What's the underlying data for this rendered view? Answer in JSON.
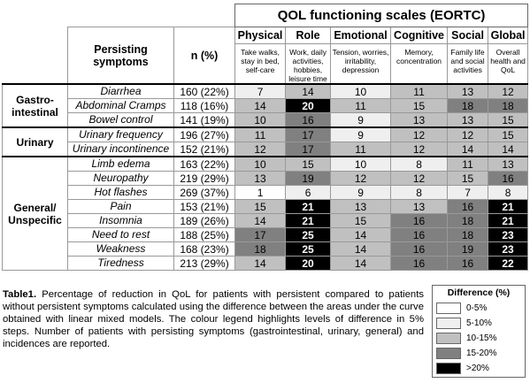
{
  "header": {
    "title": "QOL functioning scales (EORTC)",
    "symptom_label": "Persisting symptoms",
    "n_label": "n (%)"
  },
  "scales": [
    {
      "name": "Physical",
      "description": "Take walks, stay in bed, self-care"
    },
    {
      "name": "Role",
      "description": "Work, daily activities, hobbies, leisure time"
    },
    {
      "name": "Emotional",
      "description": "Tension, worries, irritability, depression"
    },
    {
      "name": "Cognitive",
      "description": "Memory, concentration"
    },
    {
      "name": "Social",
      "description": "Family life and social activities"
    },
    {
      "name": "Global",
      "description": "Overall health and QoL"
    }
  ],
  "groups": [
    {
      "name": "Gastro-intestinal",
      "rows": [
        {
          "symptom": "Diarrhea",
          "n": "160 (22%)",
          "values": [
            7,
            14,
            10,
            11,
            13,
            12
          ],
          "fills": [
            "#efefef",
            "#c0c0c0",
            "#efefef",
            "#c0c0c0",
            "#c0c0c0",
            "#c0c0c0"
          ]
        },
        {
          "symptom": "Abdominal Cramps",
          "n": "118 (16%)",
          "values": [
            14,
            20,
            11,
            15,
            18,
            18
          ],
          "fills": [
            "#c0c0c0",
            "#000000",
            "#c0c0c0",
            "#c0c0c0",
            "#808080",
            "#808080"
          ]
        },
        {
          "symptom": "Bowel control",
          "n": "141 (19%)",
          "values": [
            10,
            16,
            9,
            13,
            13,
            15
          ],
          "fills": [
            "#c0c0c0",
            "#808080",
            "#efefef",
            "#c0c0c0",
            "#c0c0c0",
            "#c0c0c0"
          ]
        }
      ]
    },
    {
      "name": "Urinary",
      "rows": [
        {
          "symptom": "Urinary frequency",
          "n": "196 (27%)",
          "values": [
            11,
            17,
            9,
            12,
            12,
            15
          ],
          "fills": [
            "#c0c0c0",
            "#808080",
            "#efefef",
            "#c0c0c0",
            "#c0c0c0",
            "#c0c0c0"
          ]
        },
        {
          "symptom": "Urinary incontinence",
          "n": "152 (21%)",
          "values": [
            12,
            17,
            11,
            12,
            14,
            14
          ],
          "fills": [
            "#c0c0c0",
            "#808080",
            "#c0c0c0",
            "#c0c0c0",
            "#c0c0c0",
            "#c0c0c0"
          ]
        }
      ]
    },
    {
      "name": "General/ Unspecific",
      "rows": [
        {
          "symptom": "Limb edema",
          "n": "163 (22%)",
          "values": [
            10,
            15,
            10,
            8,
            11,
            13
          ],
          "fills": [
            "#c0c0c0",
            "#c0c0c0",
            "#efefef",
            "#efefef",
            "#c0c0c0",
            "#c0c0c0"
          ]
        },
        {
          "symptom": "Neuropathy",
          "n": "219 (29%)",
          "values": [
            13,
            19,
            12,
            12,
            15,
            16
          ],
          "fills": [
            "#c0c0c0",
            "#808080",
            "#c0c0c0",
            "#c0c0c0",
            "#c0c0c0",
            "#808080"
          ]
        },
        {
          "symptom": "Hot flashes",
          "n": "269 (37%)",
          "values": [
            1,
            6,
            9,
            8,
            7,
            8
          ],
          "fills": [
            "#ffffff",
            "#efefef",
            "#efefef",
            "#efefef",
            "#efefef",
            "#efefef"
          ]
        },
        {
          "symptom": "Pain",
          "n": "153 (21%)",
          "values": [
            15,
            21,
            13,
            13,
            16,
            21
          ],
          "fills": [
            "#c0c0c0",
            "#000000",
            "#c0c0c0",
            "#c0c0c0",
            "#808080",
            "#000000"
          ]
        },
        {
          "symptom": "Insomnia",
          "n": "189 (26%)",
          "values": [
            14,
            21,
            15,
            16,
            18,
            21
          ],
          "fills": [
            "#c0c0c0",
            "#000000",
            "#c0c0c0",
            "#808080",
            "#808080",
            "#000000"
          ]
        },
        {
          "symptom": "Need to rest",
          "n": "188 (25%)",
          "values": [
            17,
            25,
            14,
            16,
            18,
            23
          ],
          "fills": [
            "#808080",
            "#000000",
            "#c0c0c0",
            "#808080",
            "#808080",
            "#000000"
          ]
        },
        {
          "symptom": "Weakness",
          "n": "168 (23%)",
          "values": [
            18,
            25,
            14,
            16,
            19,
            23
          ],
          "fills": [
            "#808080",
            "#000000",
            "#c0c0c0",
            "#808080",
            "#808080",
            "#000000"
          ]
        },
        {
          "symptom": "Tiredness",
          "n": "213 (29%)",
          "values": [
            14,
            20,
            14,
            16,
            16,
            22
          ],
          "fills": [
            "#c0c0c0",
            "#000000",
            "#c0c0c0",
            "#808080",
            "#808080",
            "#000000"
          ]
        }
      ]
    }
  ],
  "caption": {
    "label": "Table1.",
    "text": "Percentage of reduction in QoL for patients with persistent compared to patients without persistent symptoms calculated using the difference between the areas under the curve obtained with linear mixed models. The colour legend highlights levels of difference in 5% steps. Number of patients with persisting symptoms (gastrointestinal, urinary, general) and incidences are reported."
  },
  "legend": {
    "title": "Difference (%)",
    "items": [
      {
        "label": "0-5%",
        "color": "#ffffff"
      },
      {
        "label": "5-10%",
        "color": "#efefef"
      },
      {
        "label": "10-15%",
        "color": "#c0c0c0"
      },
      {
        "label": "15-20%",
        "color": "#808080"
      },
      {
        "label": ">20%",
        "color": "#000000"
      }
    ]
  }
}
